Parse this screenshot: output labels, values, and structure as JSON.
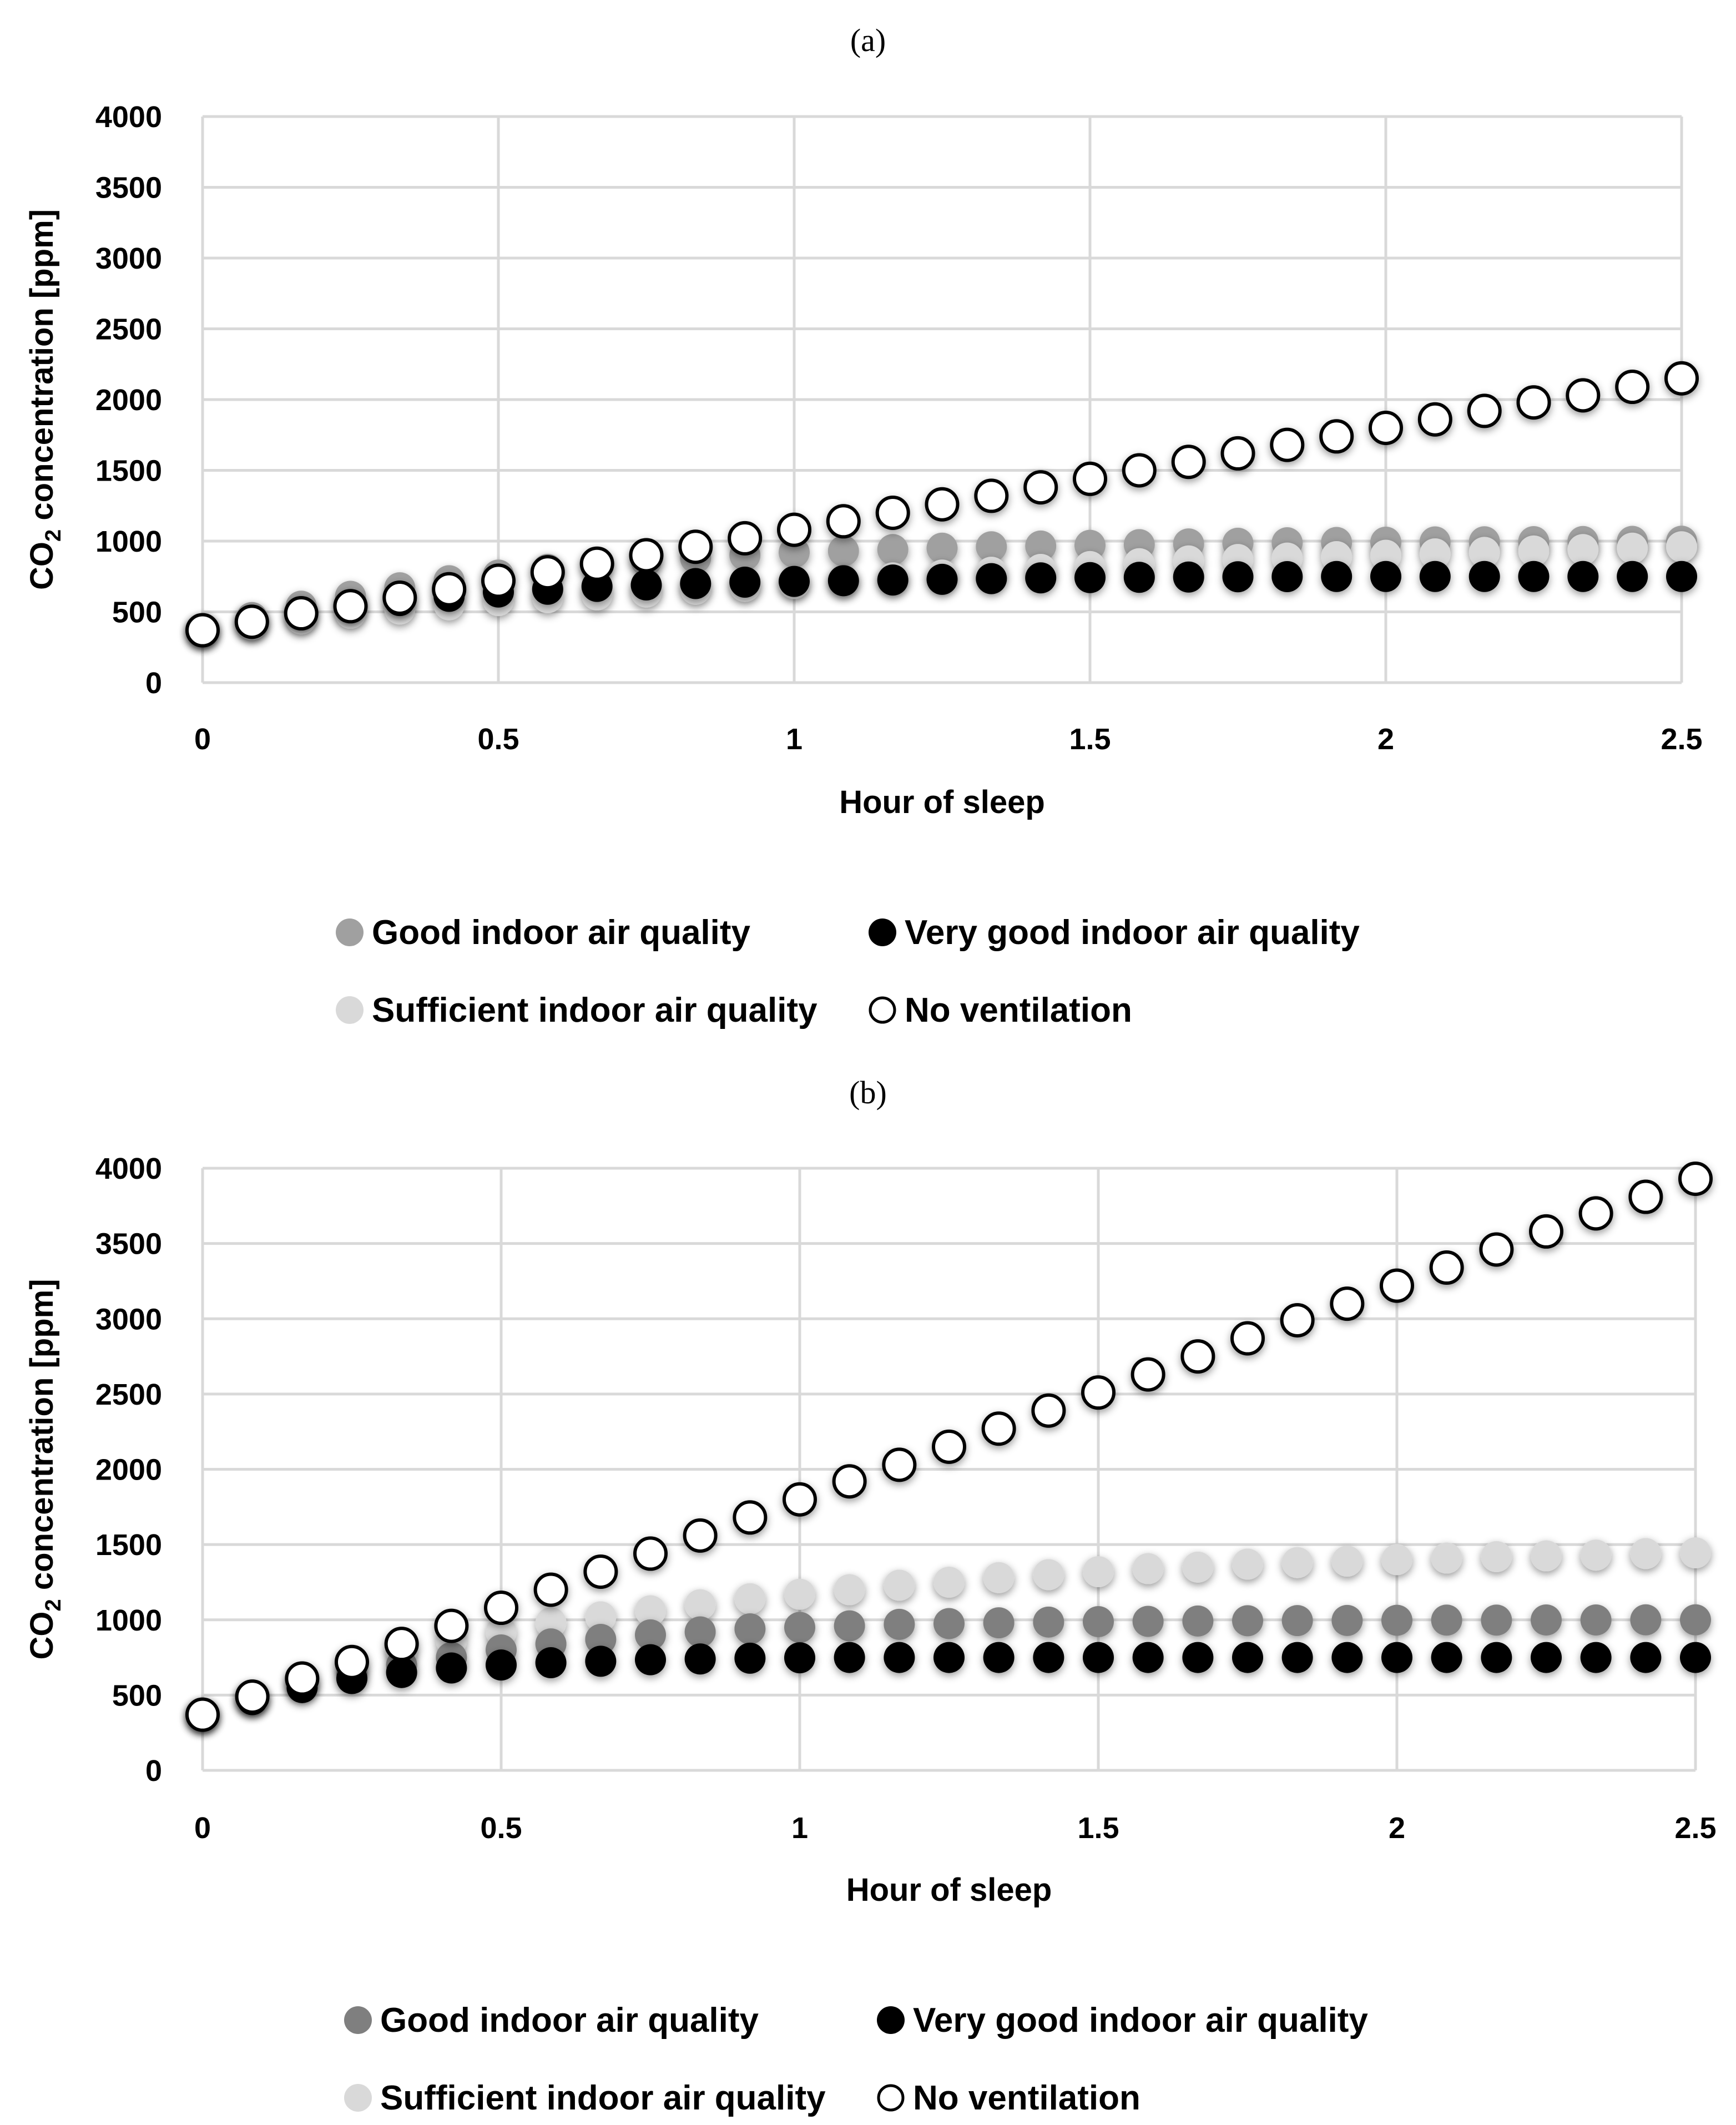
{
  "colors": {
    "good_a": "#a0a0a0",
    "good_b": "#7f7f7f",
    "very_good": "#000000",
    "sufficient": "#d9d9d9",
    "no_ventilation_fill": "#ffffff",
    "no_ventilation_stroke": "#000000",
    "grid": "#d9d9d9"
  },
  "chart_data": [
    {
      "panel_label": "(a)",
      "type": "scatter",
      "xlabel": "Hour of sleep",
      "ylabel_prefix": "CO",
      "ylabel_sub": "2",
      "ylabel_suffix": " concentration [ppm]",
      "xlim": [
        0,
        2.5
      ],
      "ylim": [
        0,
        4000
      ],
      "xticks": [
        0,
        0.5,
        1,
        1.5,
        2,
        2.5
      ],
      "xtick_labels": [
        "0",
        "0.5",
        "1",
        "1.5",
        "2",
        "2.5"
      ],
      "yticks": [
        0,
        500,
        1000,
        1500,
        2000,
        2500,
        3000,
        3500,
        4000
      ],
      "ytick_labels": [
        "0",
        "500",
        "1000",
        "1500",
        "2000",
        "2500",
        "3000",
        "3500",
        "4000"
      ],
      "grid": true,
      "legend_position": "bottom",
      "x": [
        0,
        0.0833,
        0.1667,
        0.25,
        0.3333,
        0.4167,
        0.5,
        0.5833,
        0.6667,
        0.75,
        0.8333,
        0.9167,
        1,
        1.0833,
        1.1667,
        1.25,
        1.3333,
        1.4167,
        1.5,
        1.5833,
        1.6667,
        1.75,
        1.8333,
        1.9167,
        2,
        2.0833,
        2.1667,
        2.25,
        2.3333,
        2.4167,
        2.5
      ],
      "series": [
        {
          "name": "Good indoor air quality",
          "style": "good_a",
          "values": [
            370,
            460,
            540,
            610,
            670,
            720,
            760,
            800,
            830,
            860,
            880,
            900,
            920,
            930,
            940,
            950,
            960,
            965,
            970,
            975,
            980,
            985,
            988,
            990,
            992,
            994,
            995,
            996,
            997,
            998,
            999
          ]
        },
        {
          "name": "Sufficient indoor air quality",
          "style": "sufficient",
          "values": [
            370,
            410,
            450,
            490,
            520,
            550,
            580,
            600,
            620,
            640,
            660,
            680,
            700,
            720,
            740,
            760,
            780,
            800,
            820,
            840,
            860,
            870,
            880,
            890,
            900,
            910,
            920,
            930,
            940,
            950,
            960
          ]
        },
        {
          "name": "Very good indoor air quality",
          "style": "very_good",
          "values": [
            370,
            430,
            490,
            540,
            580,
            610,
            640,
            660,
            680,
            690,
            700,
            710,
            715,
            720,
            725,
            730,
            735,
            740,
            742,
            744,
            746,
            748,
            749,
            750,
            750,
            750,
            750,
            750,
            750,
            750,
            750
          ]
        },
        {
          "name": "No ventilation",
          "style": "no_ventilation",
          "values": [
            370,
            430,
            490,
            540,
            600,
            660,
            720,
            780,
            840,
            900,
            960,
            1020,
            1080,
            1140,
            1200,
            1260,
            1320,
            1380,
            1440,
            1500,
            1560,
            1620,
            1680,
            1740,
            1800,
            1860,
            1920,
            1980,
            2030,
            2090,
            2150
          ]
        }
      ],
      "legend": [
        {
          "label": "Good indoor air quality",
          "style": "good_a"
        },
        {
          "label": "Very good indoor air quality",
          "style": "very_good"
        },
        {
          "label": "Sufficient indoor air quality",
          "style": "sufficient"
        },
        {
          "label": "No ventilation",
          "style": "no_ventilation"
        }
      ]
    },
    {
      "panel_label": "(b)",
      "type": "scatter",
      "xlabel": "Hour of sleep",
      "ylabel_prefix": "CO",
      "ylabel_sub": "2",
      "ylabel_suffix": " concentration [ppm]",
      "xlim": [
        0,
        2.5
      ],
      "ylim": [
        0,
        4000
      ],
      "xticks": [
        0,
        0.5,
        1,
        1.5,
        2,
        2.5
      ],
      "xtick_labels": [
        "0",
        "0.5",
        "1",
        "1.5",
        "2",
        "2.5"
      ],
      "yticks": [
        0,
        500,
        1000,
        1500,
        2000,
        2500,
        3000,
        3500,
        4000
      ],
      "ytick_labels": [
        "0",
        "500",
        "1000",
        "1500",
        "2000",
        "2500",
        "3000",
        "3500",
        "4000"
      ],
      "grid": true,
      "legend_position": "bottom",
      "x": [
        0,
        0.0833,
        0.1667,
        0.25,
        0.3333,
        0.4167,
        0.5,
        0.5833,
        0.6667,
        0.75,
        0.8333,
        0.9167,
        1,
        1.0833,
        1.1667,
        1.25,
        1.3333,
        1.4167,
        1.5,
        1.5833,
        1.6667,
        1.75,
        1.8333,
        1.9167,
        2,
        2.0833,
        2.1667,
        2.25,
        2.3333,
        2.4167,
        2.5
      ],
      "series": [
        {
          "name": "Sufficient indoor air quality",
          "style": "sufficient",
          "values": [
            370,
            490,
            600,
            700,
            790,
            860,
            920,
            980,
            1020,
            1060,
            1100,
            1140,
            1170,
            1200,
            1230,
            1250,
            1280,
            1300,
            1320,
            1340,
            1350,
            1370,
            1380,
            1390,
            1400,
            1410,
            1420,
            1425,
            1430,
            1440,
            1445
          ]
        },
        {
          "name": "Good indoor air quality",
          "style": "good_b",
          "values": [
            370,
            480,
            570,
            640,
            700,
            750,
            800,
            840,
            870,
            900,
            920,
            940,
            950,
            960,
            970,
            975,
            980,
            985,
            988,
            990,
            992,
            994,
            995,
            996,
            997,
            998,
            998,
            999,
            999,
            1000,
            1000
          ]
        },
        {
          "name": "Very good indoor air quality",
          "style": "very_good",
          "values": [
            370,
            470,
            550,
            610,
            650,
            680,
            700,
            715,
            725,
            735,
            740,
            745,
            748,
            750,
            750,
            750,
            750,
            750,
            750,
            750,
            750,
            750,
            750,
            750,
            750,
            750,
            750,
            750,
            750,
            750,
            750
          ]
        },
        {
          "name": "No ventilation",
          "style": "no_ventilation",
          "values": [
            370,
            490,
            610,
            720,
            840,
            960,
            1080,
            1200,
            1320,
            1440,
            1560,
            1680,
            1800,
            1920,
            2030,
            2150,
            2270,
            2390,
            2510,
            2630,
            2750,
            2870,
            2990,
            3100,
            3220,
            3340,
            3460,
            3580,
            3700,
            3810,
            3930
          ]
        }
      ],
      "legend": [
        {
          "label": "Good indoor air quality",
          "style": "good_b"
        },
        {
          "label": "Very good indoor air quality",
          "style": "very_good"
        },
        {
          "label": "Sufficient indoor air quality",
          "style": "sufficient"
        },
        {
          "label": "No ventilation",
          "style": "no_ventilation"
        }
      ]
    }
  ]
}
